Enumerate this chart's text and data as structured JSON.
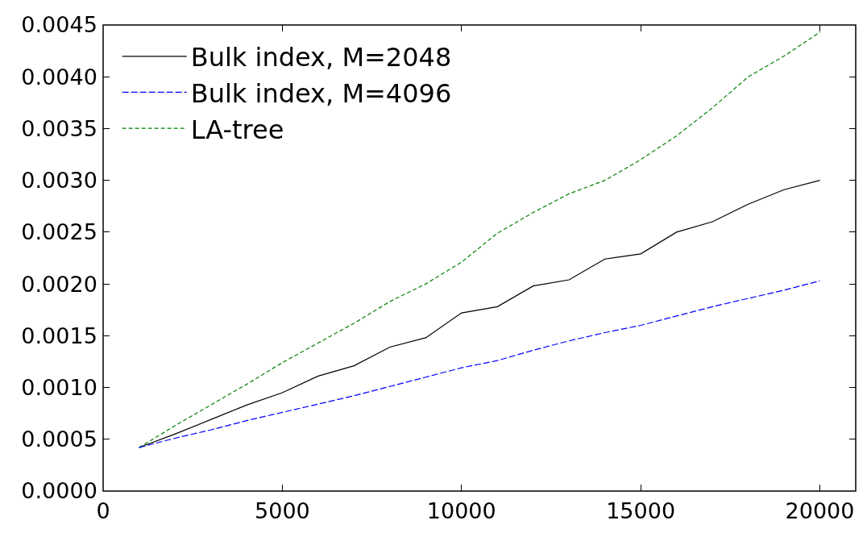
{
  "chart_data": {
    "type": "line",
    "x": [
      1000,
      2000,
      3000,
      4000,
      5000,
      6000,
      7000,
      8000,
      9000,
      10000,
      11000,
      12000,
      13000,
      14000,
      15000,
      16000,
      17000,
      18000,
      19000,
      20000
    ],
    "series": [
      {
        "name": "Bulk index, M=2048",
        "color": "#000000",
        "line_style": "solid",
        "values": [
          0.00042,
          0.00055,
          0.00069,
          0.00083,
          0.00095,
          0.00111,
          0.00121,
          0.00139,
          0.00148,
          0.00172,
          0.00178,
          0.00198,
          0.00204,
          0.00224,
          0.00229,
          0.0025,
          0.0026,
          0.00277,
          0.00291,
          0.003
        ]
      },
      {
        "name": "Bulk index, M=4096",
        "color": "#0000ff",
        "line_style": "dashed",
        "values": [
          0.00042,
          0.00051,
          0.00059,
          0.00068,
          0.00076,
          0.00084,
          0.00092,
          0.00101,
          0.0011,
          0.00119,
          0.00126,
          0.00136,
          0.00145,
          0.00153,
          0.0016,
          0.00169,
          0.00178,
          0.00186,
          0.00194,
          0.00203
        ]
      },
      {
        "name": "LA-tree",
        "color": "#008000",
        "line_style": "dashed",
        "values": [
          0.00042,
          0.00063,
          0.00083,
          0.00103,
          0.00124,
          0.00143,
          0.00162,
          0.00183,
          0.002,
          0.00221,
          0.00249,
          0.00269,
          0.00287,
          0.003,
          0.0032,
          0.00343,
          0.0037,
          0.004,
          0.0042,
          0.00443
        ]
      }
    ],
    "xlim": [
      0,
      21000
    ],
    "xticks": [
      0,
      5000,
      10000,
      15000,
      20000
    ],
    "ylim": [
      0,
      0.0045
    ],
    "yticks": [
      {
        "value": 0,
        "label": "0.0000"
      },
      {
        "value": 0.0005,
        "label": "0.0005"
      },
      {
        "value": 0.001,
        "label": "0.0010"
      },
      {
        "value": 0.0015,
        "label": "0.0015"
      },
      {
        "value": 0.002,
        "label": "0.0020"
      },
      {
        "value": 0.0025,
        "label": "0.0025"
      },
      {
        "value": 0.003,
        "label": "0.0030"
      },
      {
        "value": 0.0035,
        "label": "0.0035"
      },
      {
        "value": 0.004,
        "label": "0.0040"
      },
      {
        "value": 0.0045,
        "label": "0.0045"
      }
    ],
    "grid": false,
    "legend": "top left",
    "marker": "none"
  }
}
